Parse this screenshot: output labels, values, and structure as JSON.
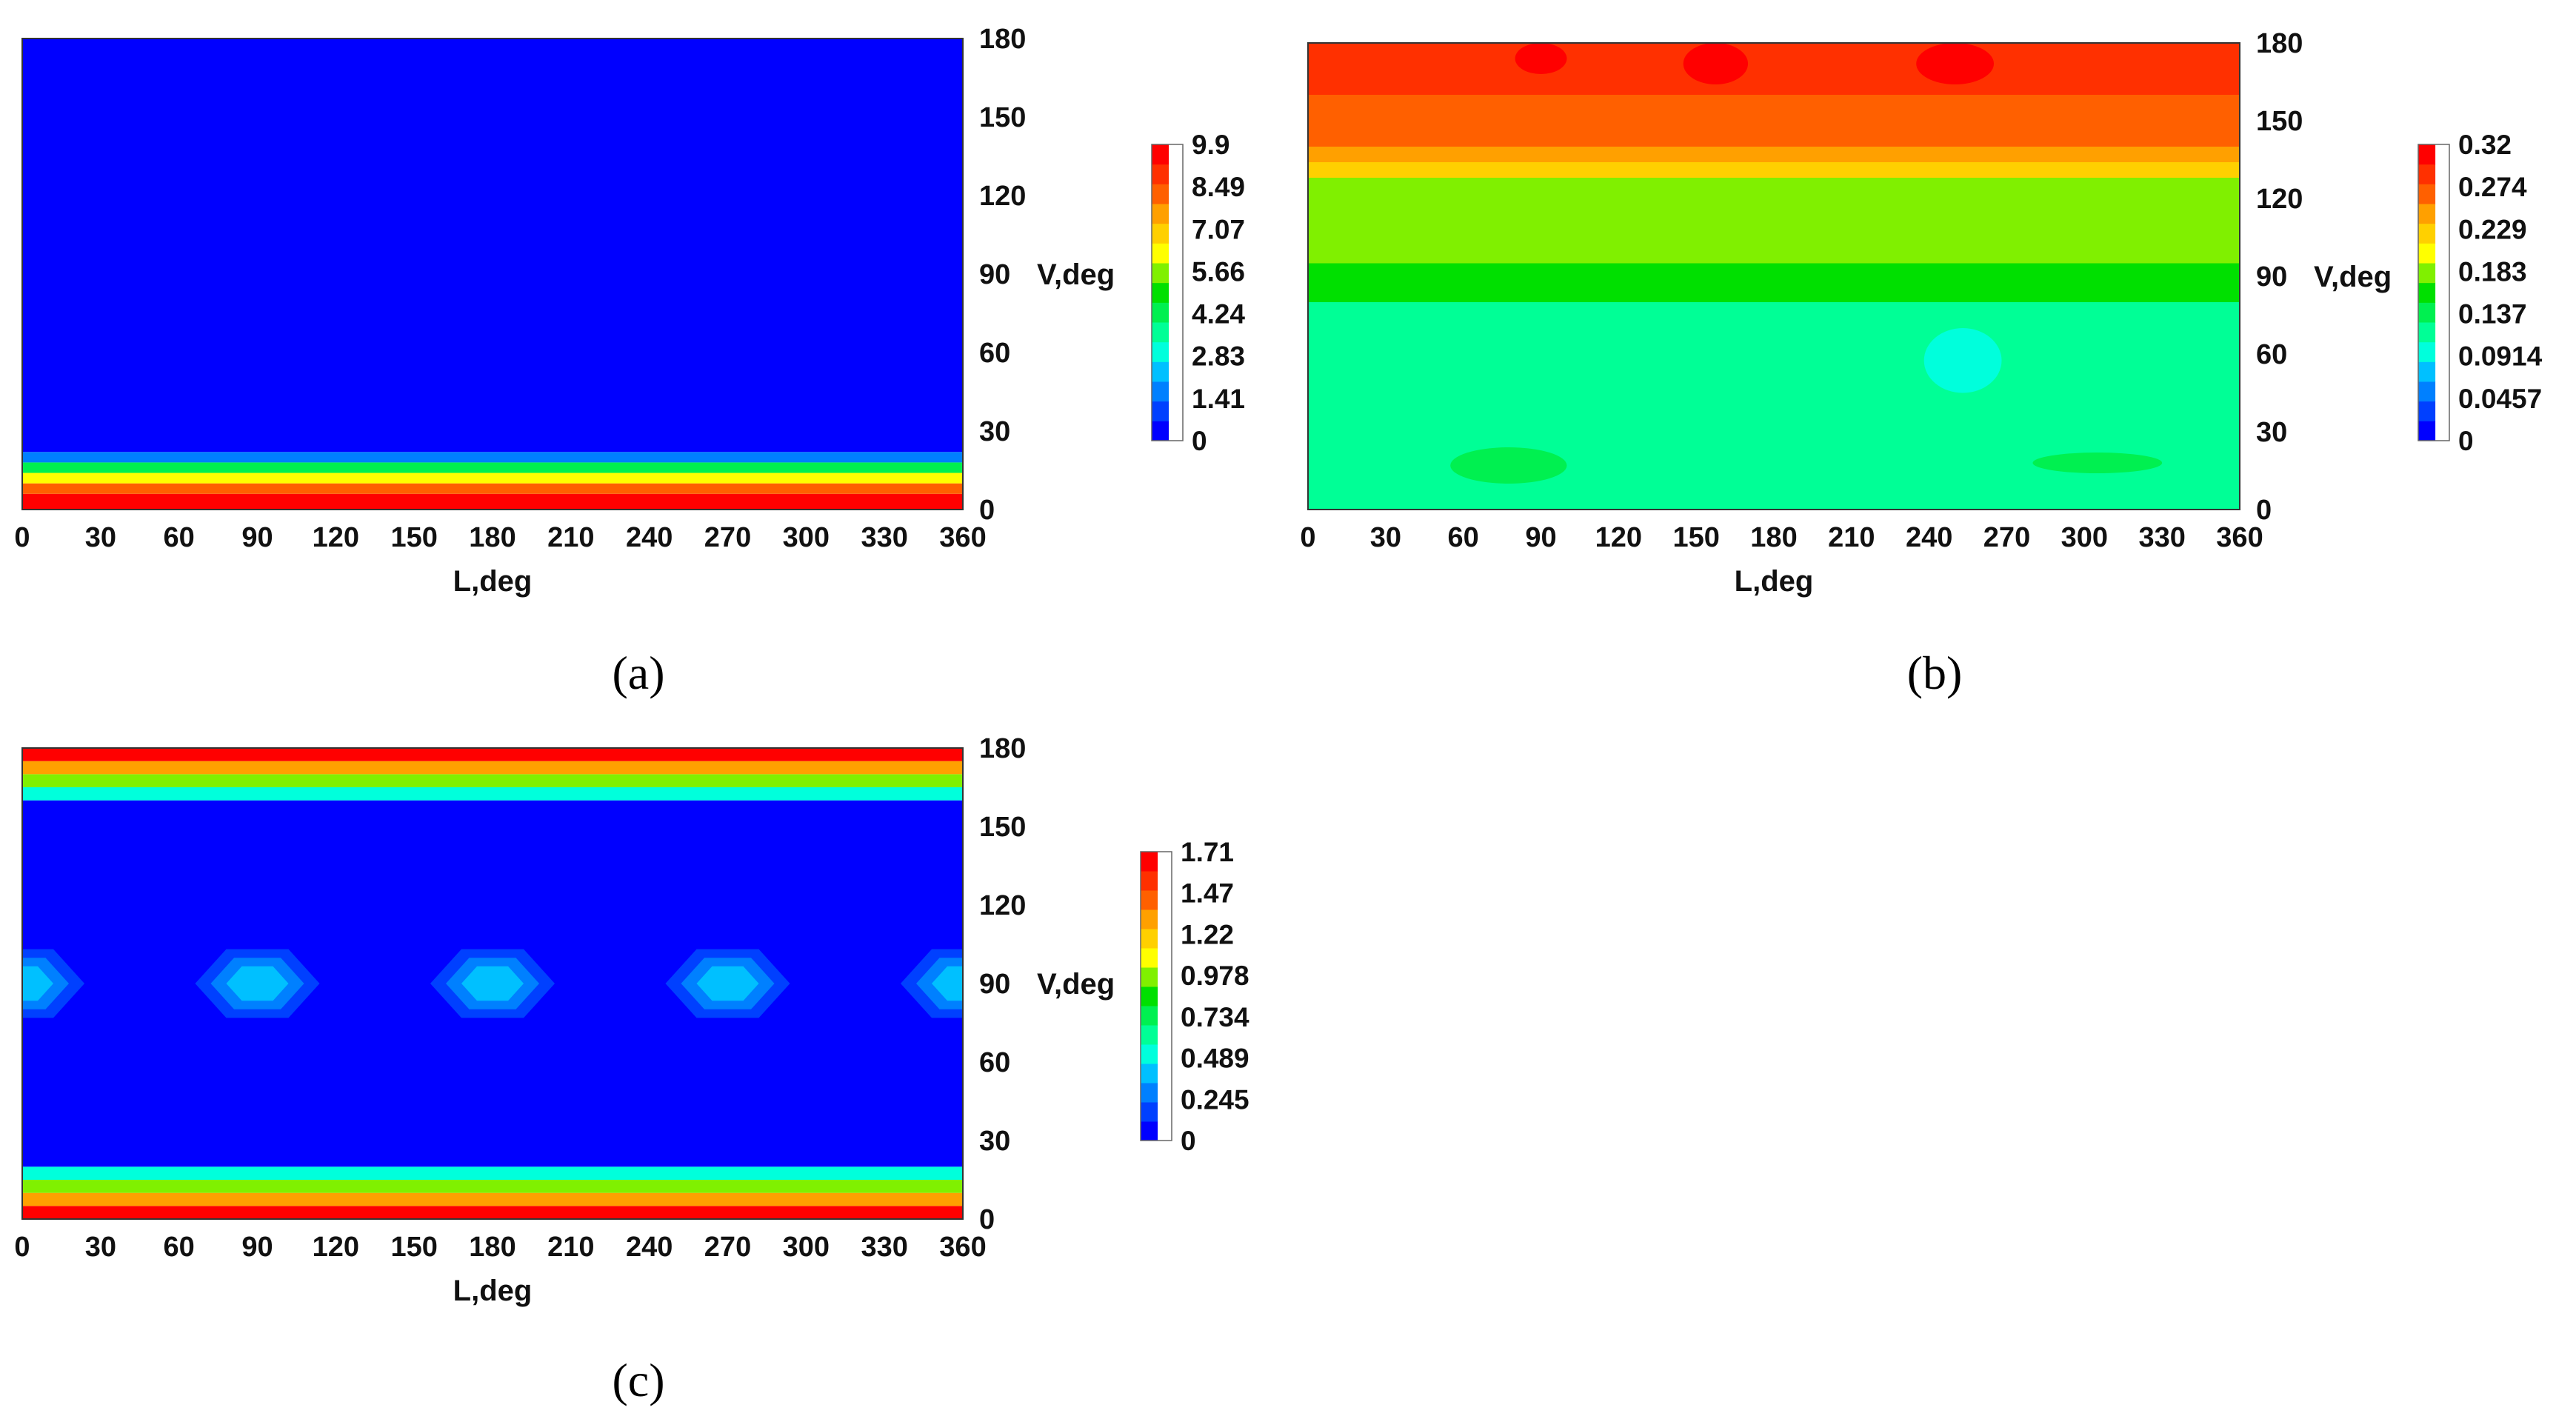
{
  "colors": {
    "ramp": [
      "#0000ff",
      "#0040ff",
      "#0080ff",
      "#00c0ff",
      "#00ffdc",
      "#00ff96",
      "#00f050",
      "#00e000",
      "#80f000",
      "#ffff00",
      "#ffd000",
      "#ffa000",
      "#ff6000",
      "#ff3000",
      "#ff0000"
    ]
  },
  "chart_data": [
    {
      "type": "heatmap",
      "panel_label": "(a)",
      "xlabel": "L,deg",
      "ylabel": "V,deg",
      "xlim": [
        0,
        360
      ],
      "ylim": [
        0,
        180
      ],
      "x_ticks": [
        0,
        30,
        60,
        90,
        120,
        150,
        180,
        210,
        240,
        270,
        300,
        330,
        360
      ],
      "y_ticks": [
        0,
        30,
        60,
        90,
        120,
        150,
        180
      ],
      "colorbar": {
        "min": 0,
        "max": 9.9,
        "tick_labels": [
          "9.9",
          "8.49",
          "7.07",
          "5.66",
          "4.24",
          "2.83",
          "1.41",
          "0"
        ]
      },
      "field": {
        "description_of_pattern": "high along V≈0 band, near zero elsewhere",
        "bands": [
          {
            "v_from": 0,
            "v_to": 6,
            "value": 9.9
          },
          {
            "v_from": 6,
            "v_to": 10,
            "value": 8.5
          },
          {
            "v_from": 10,
            "v_to": 14,
            "value": 6.5
          },
          {
            "v_from": 14,
            "v_to": 18,
            "value": 4.0
          },
          {
            "v_from": 18,
            "v_to": 22,
            "value": 1.5
          },
          {
            "v_from": 22,
            "v_to": 180,
            "value": 0
          }
        ]
      }
    },
    {
      "type": "heatmap",
      "panel_label": "(b)",
      "xlabel": "L,deg",
      "ylabel": "V,deg",
      "xlim": [
        0,
        360
      ],
      "ylim": [
        0,
        180
      ],
      "x_ticks": [
        0,
        30,
        60,
        90,
        120,
        150,
        180,
        210,
        240,
        270,
        300,
        330,
        360
      ],
      "y_ticks": [
        0,
        30,
        60,
        90,
        120,
        150,
        180
      ],
      "colorbar": {
        "min": 0,
        "max": 0.32,
        "tick_labels": [
          "0.32",
          "0.274",
          "0.229",
          "0.183",
          "0.137",
          "0.0914",
          "0.0457",
          "0"
        ]
      },
      "field": {
        "bands": [
          {
            "v_from": 0,
            "v_to": 80,
            "value": 0.11
          },
          {
            "v_from": 80,
            "v_to": 95,
            "value": 0.15
          },
          {
            "v_from": 95,
            "v_to": 128,
            "value": 0.19
          },
          {
            "v_from": 128,
            "v_to": 134,
            "value": 0.22
          },
          {
            "v_from": 134,
            "v_to": 140,
            "value": 0.245
          },
          {
            "v_from": 140,
            "v_to": 146,
            "value": 0.265
          },
          {
            "v_from": 146,
            "v_to": 160,
            "value": 0.285
          },
          {
            "v_from": 160,
            "v_to": 180,
            "value": 0.305
          }
        ],
        "spots": [
          {
            "l_from": 145,
            "l_to": 170,
            "v_from": 164,
            "v_to": 180,
            "value": 0.32
          },
          {
            "l_from": 235,
            "l_to": 265,
            "v_from": 164,
            "v_to": 180,
            "value": 0.32
          },
          {
            "l_from": 80,
            "l_to": 100,
            "v_from": 168,
            "v_to": 180,
            "value": 0.32
          },
          {
            "l_from": 238,
            "l_to": 268,
            "v_from": 45,
            "v_to": 70,
            "value": 0.09
          },
          {
            "l_from": 55,
            "l_to": 100,
            "v_from": 10,
            "v_to": 24,
            "value": 0.14
          },
          {
            "l_from": 280,
            "l_to": 330,
            "v_from": 14,
            "v_to": 22,
            "value": 0.14
          }
        ]
      }
    },
    {
      "type": "heatmap",
      "panel_label": "(c)",
      "xlabel": "L,deg",
      "ylabel": "V,deg",
      "xlim": [
        0,
        360
      ],
      "ylim": [
        0,
        180
      ],
      "x_ticks": [
        0,
        30,
        60,
        90,
        120,
        150,
        180,
        210,
        240,
        270,
        300,
        330,
        360
      ],
      "y_ticks": [
        0,
        30,
        60,
        90,
        120,
        150,
        180
      ],
      "colorbar": {
        "min": 0,
        "max": 1.71,
        "tick_labels": [
          "1.71",
          "1.47",
          "1.22",
          "0.978",
          "0.734",
          "0.489",
          "0.245",
          "0"
        ]
      },
      "field": {
        "bands": [
          {
            "v_from": 0,
            "v_to": 5,
            "value": 1.65
          },
          {
            "v_from": 5,
            "v_to": 10,
            "value": 1.35
          },
          {
            "v_from": 10,
            "v_to": 15,
            "value": 0.95
          },
          {
            "v_from": 15,
            "v_to": 20,
            "value": 0.45
          },
          {
            "v_from": 20,
            "v_to": 160,
            "value": 0
          },
          {
            "v_from": 160,
            "v_to": 165,
            "value": 0.45
          },
          {
            "v_from": 165,
            "v_to": 170,
            "value": 0.95
          },
          {
            "v_from": 170,
            "v_to": 175,
            "value": 1.35
          },
          {
            "v_from": 175,
            "v_to": 180,
            "value": 1.65
          }
        ],
        "hotspots": [
          {
            "l": 0,
            "v": 90,
            "peak": 0.489
          },
          {
            "l": 90,
            "v": 90,
            "peak": 0.489
          },
          {
            "l": 180,
            "v": 90,
            "peak": 0.489
          },
          {
            "l": 270,
            "v": 90,
            "peak": 0.489
          },
          {
            "l": 360,
            "v": 90,
            "peak": 0.489
          }
        ]
      }
    }
  ]
}
